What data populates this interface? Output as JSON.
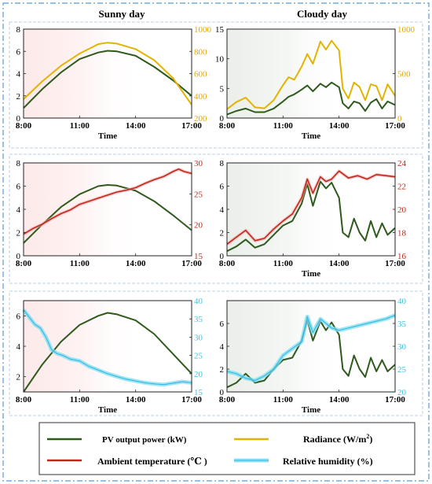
{
  "columns": [
    "Sunny day",
    "Cloudy day"
  ],
  "legend": {
    "placement": "bottom",
    "entries": [
      {
        "label": "PV output power (kW)",
        "color": "#2e5a1c"
      },
      {
        "label": "Radiance (W/m",
        "sup": "2",
        "suffix": ")",
        "color": "#e2b400"
      },
      {
        "label": "Ambient temperature (℃ )",
        "color": "#c0281c"
      },
      {
        "label": "Relative humidity (%)",
        "color": "#7fdcf2"
      }
    ]
  },
  "colors": {
    "pv": "#2e5a1c",
    "radiance": "#e2b400",
    "temperature": "#c0281c",
    "humidity": "#7fdcf2",
    "humidity_line": "#29b6de",
    "sunny_bg": "#fde9e9",
    "cloudy_bg": "#ebefea",
    "right_axis_radiance": "#e2a800",
    "right_axis_temperature": "#c0281c",
    "right_axis_humidity": "#3cc4e6",
    "frame": "#5b9bd5"
  },
  "chart_data": [
    {
      "type": "line",
      "row": 0,
      "col": 0,
      "xlabel": "Time",
      "xlim": [
        8,
        17
      ],
      "xticks": [
        "8:00",
        "11:00",
        "14:00",
        "17:00"
      ],
      "left_axis": {
        "ylim": [
          0,
          8
        ],
        "ticks": [
          0,
          2,
          4,
          6,
          8
        ]
      },
      "right_axis": {
        "ylim": [
          200,
          1000
        ],
        "ticks": [
          200,
          400,
          600,
          800,
          1000
        ]
      },
      "grid": false,
      "series": [
        {
          "key": "pv",
          "axis": "left",
          "x": [
            8,
            9,
            10,
            11,
            12,
            12.5,
            13,
            14,
            15,
            16,
            17
          ],
          "y": [
            0.9,
            2.6,
            4.1,
            5.3,
            5.9,
            6.05,
            6.0,
            5.6,
            4.6,
            3.4,
            2.0
          ]
        },
        {
          "key": "radiance",
          "axis": "right",
          "x": [
            8,
            9,
            10,
            11,
            12,
            12.5,
            13,
            14,
            15,
            16,
            17
          ],
          "y": [
            370,
            530,
            670,
            780,
            865,
            878,
            870,
            820,
            720,
            560,
            320
          ]
        }
      ]
    },
    {
      "type": "line",
      "row": 0,
      "col": 1,
      "xlabel": "Time",
      "xlim": [
        8,
        17
      ],
      "xticks": [
        "8:00",
        "11:00",
        "14:00",
        "17:00"
      ],
      "left_axis": {
        "ylim": [
          0,
          15
        ],
        "ticks": [
          0,
          5,
          10,
          15
        ]
      },
      "right_axis": {
        "ylim": [
          0,
          1000
        ],
        "ticks": [
          0,
          500,
          1000
        ]
      },
      "grid": false,
      "series": [
        {
          "key": "pv",
          "axis": "left",
          "x": [
            8,
            8.5,
            9,
            9.5,
            10,
            10.5,
            11,
            11.3,
            11.6,
            12,
            12.3,
            12.6,
            13,
            13.3,
            13.6,
            14,
            14.2,
            14.5,
            14.8,
            15.1,
            15.4,
            15.7,
            16,
            16.3,
            16.6,
            17
          ],
          "y": [
            0.6,
            1.2,
            1.6,
            1.0,
            1.0,
            1.6,
            2.8,
            3.6,
            4.0,
            4.8,
            5.5,
            4.5,
            5.8,
            5.2,
            6.0,
            5.2,
            2.5,
            1.6,
            2.8,
            2.5,
            1.2,
            2.6,
            3.2,
            1.6,
            2.8,
            2.2
          ]
        },
        {
          "key": "radiance",
          "axis": "right",
          "x": [
            8,
            8.5,
            9,
            9.5,
            10,
            10.5,
            11,
            11.3,
            11.6,
            12,
            12.3,
            12.6,
            13,
            13.3,
            13.6,
            14,
            14.2,
            14.5,
            14.8,
            15.1,
            15.4,
            15.7,
            16,
            16.3,
            16.6,
            17
          ],
          "y": [
            100,
            180,
            230,
            120,
            110,
            200,
            370,
            460,
            430,
            580,
            720,
            610,
            860,
            770,
            870,
            760,
            330,
            220,
            400,
            350,
            200,
            380,
            360,
            200,
            380,
            250
          ]
        }
      ]
    },
    {
      "type": "line",
      "row": 1,
      "col": 0,
      "xlabel": "",
      "xlim": [
        8,
        17
      ],
      "xticks": [
        "8:00",
        "11:00",
        "14:00",
        "17:00"
      ],
      "left_axis": {
        "ylim": [
          0,
          8
        ],
        "ticks": [
          0,
          2,
          4,
          6,
          8
        ]
      },
      "right_axis": {
        "ylim": [
          15,
          30
        ],
        "ticks": [
          15,
          20,
          25,
          30
        ]
      },
      "grid": false,
      "series": [
        {
          "key": "pv",
          "axis": "left",
          "x": [
            8,
            9,
            10,
            11,
            12,
            12.5,
            13,
            14,
            15,
            16,
            17
          ],
          "y": [
            1.1,
            2.7,
            4.2,
            5.3,
            6.0,
            6.1,
            6.05,
            5.6,
            4.7,
            3.5,
            2.2
          ]
        },
        {
          "key": "temperature",
          "axis": "right",
          "x": [
            8,
            8.5,
            9,
            9.5,
            10,
            10.5,
            11,
            11.5,
            12,
            12.5,
            13,
            13.5,
            14,
            14.5,
            15,
            15.5,
            16,
            16.3,
            16.6,
            17
          ],
          "y": [
            18.5,
            19.4,
            20.1,
            21.0,
            21.8,
            22.4,
            23.3,
            23.8,
            24.3,
            24.8,
            25.3,
            25.6,
            26.0,
            26.7,
            27.3,
            27.8,
            28.6,
            29.0,
            28.6,
            28.3
          ]
        }
      ]
    },
    {
      "type": "line",
      "row": 1,
      "col": 1,
      "xlabel": "Time",
      "xlim": [
        8,
        17
      ],
      "xticks": [
        "8:00",
        "11:00",
        "14:00",
        "17:00"
      ],
      "left_axis": {
        "ylim": [
          0,
          8
        ],
        "ticks": [
          0,
          2,
          4,
          6,
          8
        ]
      },
      "right_axis": {
        "ylim": [
          16,
          24
        ],
        "ticks": [
          16,
          18,
          20,
          22,
          24
        ]
      },
      "grid": false,
      "series": [
        {
          "key": "pv",
          "axis": "left",
          "x": [
            8,
            8.5,
            9,
            9.5,
            10,
            10.5,
            11,
            11.5,
            12,
            12.3,
            12.6,
            13,
            13.3,
            13.6,
            14,
            14.2,
            14.5,
            14.8,
            15.1,
            15.4,
            15.7,
            16,
            16.3,
            16.6,
            17
          ],
          "y": [
            0.4,
            0.8,
            1.4,
            0.7,
            1.0,
            1.8,
            2.6,
            3.0,
            4.5,
            6.2,
            4.3,
            6.4,
            5.8,
            6.3,
            5.0,
            2.0,
            1.6,
            3.2,
            2.0,
            1.3,
            3.0,
            1.6,
            2.8,
            1.8,
            2.4
          ]
        },
        {
          "key": "temperature",
          "axis": "right",
          "x": [
            8,
            8.5,
            9,
            9.5,
            10,
            10.5,
            11,
            11.5,
            12,
            12.3,
            12.6,
            13,
            13.3,
            13.6,
            14,
            14.5,
            15,
            15.5,
            16,
            16.5,
            17
          ],
          "y": [
            17.0,
            17.6,
            18.2,
            17.3,
            17.5,
            18.3,
            19.0,
            19.6,
            21.0,
            22.6,
            21.4,
            22.8,
            22.4,
            22.6,
            23.3,
            22.7,
            22.9,
            22.6,
            23.0,
            22.9,
            22.8
          ]
        }
      ]
    },
    {
      "type": "line",
      "row": 2,
      "col": 0,
      "xlabel": "Time",
      "xlim": [
        8,
        17
      ],
      "xticks": [
        "8:00",
        "11:00",
        "14:00",
        "17:00"
      ],
      "left_axis": {
        "ylim": [
          1,
          7
        ],
        "ticks": [
          2,
          4,
          6
        ]
      },
      "right_axis": {
        "ylim": [
          15,
          40
        ],
        "ticks": [
          15,
          20,
          25,
          30,
          35,
          40
        ]
      },
      "grid": false,
      "series": [
        {
          "key": "pv",
          "axis": "left",
          "x": [
            8,
            9,
            10,
            11,
            12,
            12.5,
            13,
            14,
            15,
            16,
            17
          ],
          "y": [
            1.0,
            2.8,
            4.3,
            5.4,
            6.0,
            6.2,
            6.1,
            5.7,
            4.8,
            3.5,
            2.2
          ]
        },
        {
          "key": "humidity",
          "axis": "right",
          "x": [
            8,
            8.3,
            8.6,
            8.9,
            9.2,
            9.5,
            9.8,
            10.1,
            10.5,
            11,
            11.5,
            12,
            12.5,
            13,
            13.5,
            14,
            14.5,
            15,
            15.5,
            16,
            16.5,
            17
          ],
          "y": [
            37.5,
            35.5,
            33.5,
            32.5,
            30.0,
            26.5,
            25.5,
            25.0,
            24.0,
            23.5,
            22.0,
            21.0,
            20.0,
            19.2,
            18.5,
            18.0,
            17.5,
            17.2,
            17.0,
            17.4,
            17.8,
            17.5
          ]
        }
      ]
    },
    {
      "type": "line",
      "row": 2,
      "col": 1,
      "xlabel": "Time",
      "xlim": [
        8,
        17
      ],
      "xticks": [
        "8:00",
        "11:00",
        "14:00",
        "17:00"
      ],
      "left_axis": {
        "ylim": [
          0,
          8
        ],
        "ticks": [
          0,
          2,
          4,
          6
        ]
      },
      "right_axis": {
        "ylim": [
          20,
          40
        ],
        "ticks": [
          20,
          25,
          30,
          35,
          40
        ]
      },
      "grid": false,
      "series": [
        {
          "key": "pv",
          "axis": "left",
          "x": [
            8,
            8.5,
            9,
            9.5,
            10,
            10.5,
            11,
            11.5,
            12,
            12.3,
            12.6,
            13,
            13.3,
            13.6,
            14,
            14.2,
            14.5,
            14.8,
            15.1,
            15.4,
            15.7,
            16,
            16.3,
            16.6,
            17
          ],
          "y": [
            0.4,
            0.8,
            1.6,
            0.8,
            1.0,
            2.0,
            2.8,
            3.0,
            4.5,
            6.3,
            4.5,
            6.2,
            5.4,
            6.1,
            5.0,
            2.0,
            1.4,
            3.2,
            2.0,
            1.3,
            3.0,
            1.8,
            2.8,
            1.8,
            2.4
          ]
        },
        {
          "key": "humidity",
          "axis": "right",
          "x": [
            8,
            8.5,
            9,
            9.5,
            10,
            10.5,
            11,
            11.5,
            12,
            12.3,
            12.6,
            13,
            13.3,
            13.6,
            14,
            14.5,
            15,
            15.5,
            16,
            16.5,
            17
          ],
          "y": [
            24.5,
            24.0,
            23.0,
            22.5,
            23.5,
            25.0,
            28.0,
            29.5,
            31.0,
            36.5,
            33.0,
            36.0,
            35.0,
            34.0,
            33.5,
            34.0,
            34.5,
            35.0,
            35.5,
            36.0,
            36.8
          ]
        }
      ]
    }
  ]
}
